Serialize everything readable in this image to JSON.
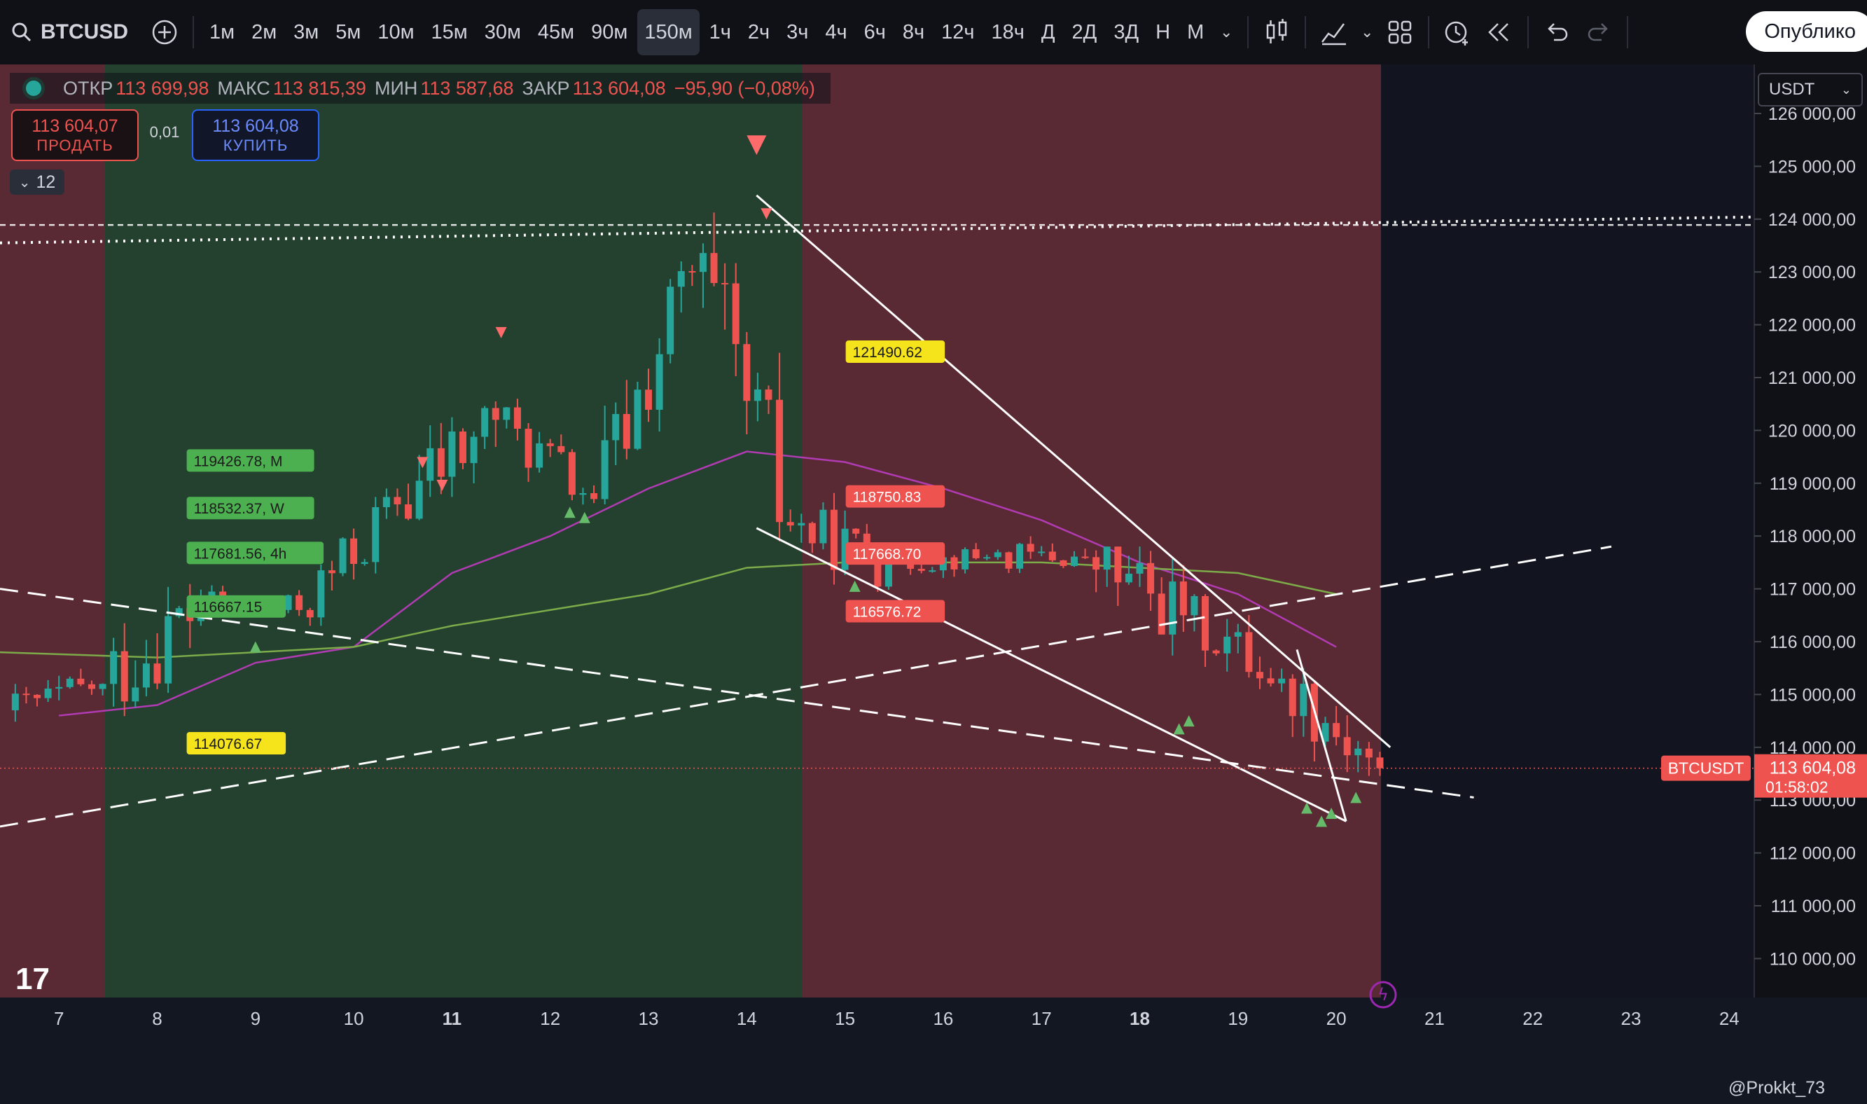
{
  "toolbar": {
    "symbol": "BTCUSD",
    "intervals": [
      "1м",
      "2м",
      "3м",
      "5м",
      "10м",
      "15м",
      "30м",
      "45м",
      "90м",
      "150м",
      "1ч",
      "2ч",
      "3ч",
      "4ч",
      "6ч",
      "8ч",
      "12ч",
      "18ч",
      "Д",
      "2Д",
      "3Д",
      "Н",
      "М"
    ],
    "active_interval": "150м",
    "publish_label": "Опублико"
  },
  "legend": {
    "open_label": "ОТКР",
    "open": "113 699,98",
    "high_label": "МАКС",
    "high": "113 815,39",
    "low_label": "МИН",
    "low": "113 587,68",
    "close_label": "ЗАКР",
    "close": "113 604,08",
    "change": "−95,90 (−0,08%)"
  },
  "trade": {
    "sell_price": "113 604,07",
    "sell_label": "ПРОДАТЬ",
    "spread": "0,01",
    "buy_price": "113 604,08",
    "buy_label": "КУПИТЬ",
    "indicators_count": "12"
  },
  "currency": "USDT",
  "brand": "@Prokkt_73",
  "colors": {
    "up": "#26a69a",
    "down": "#ef5350",
    "bull_zone": "#24402f",
    "bear_zone": "#5a2a34",
    "ma_fast": "#b13bb3",
    "ma_slow": "#7cab4a"
  },
  "chart_data": {
    "type": "candlestick",
    "y_axis_ticks": [
      "110 000,00",
      "111 000,00",
      "112 000,00",
      "113 000,00",
      "114 000,00",
      "115 000,00",
      "116 000,00",
      "117 000,00",
      "118 000,00",
      "119 000,00",
      "120 000,00",
      "121 000,00",
      "122 000,00",
      "123 000,00",
      "124 000,00",
      "125 000,00",
      "126 000,00"
    ],
    "ylim": [
      109500,
      126200
    ],
    "x_axis_ticks": [
      "7",
      "8",
      "9",
      "10",
      "11",
      "12",
      "13",
      "14",
      "15",
      "16",
      "17",
      "18",
      "19",
      "20",
      "21",
      "22",
      "23",
      "24"
    ],
    "bold_ticks": [
      "11",
      "18"
    ],
    "candles_daily": [
      {
        "day": 7,
        "open": 114700,
        "high": 115600,
        "low": 114100,
        "close": 115200
      },
      {
        "day": 8,
        "open": 115200,
        "high": 117900,
        "low": 114000,
        "close": 116700
      },
      {
        "day": 9,
        "open": 116700,
        "high": 117400,
        "low": 116100,
        "close": 116600
      },
      {
        "day": 10,
        "open": 116600,
        "high": 118900,
        "low": 116300,
        "close": 118600
      },
      {
        "day": 11,
        "open": 118600,
        "high": 122300,
        "low": 118300,
        "close": 120200
      },
      {
        "day": 12,
        "open": 120200,
        "high": 120600,
        "low": 118200,
        "close": 118700
      },
      {
        "day": 13,
        "open": 118700,
        "high": 123200,
        "low": 118600,
        "close": 123000
      },
      {
        "day": 14,
        "open": 123000,
        "high": 124400,
        "low": 117900,
        "close": 118200
      },
      {
        "day": 15,
        "open": 118200,
        "high": 119200,
        "low": 116800,
        "close": 117500
      },
      {
        "day": 16,
        "open": 117500,
        "high": 118000,
        "low": 117000,
        "close": 117600
      },
      {
        "day": 17,
        "open": 117600,
        "high": 118500,
        "low": 117300,
        "close": 117600
      },
      {
        "day": 18,
        "open": 117600,
        "high": 117800,
        "low": 114700,
        "close": 116500
      },
      {
        "day": 19,
        "open": 116500,
        "high": 116900,
        "low": 114600,
        "close": 115300
      },
      {
        "day": 20,
        "open": 115300,
        "high": 115500,
        "low": 112600,
        "close": 113604
      }
    ],
    "moving_averages": [
      {
        "name": "",
        "color": "#b13bb3",
        "points": [
          [
            7,
            114600
          ],
          [
            8,
            114800
          ],
          [
            9,
            115600
          ],
          [
            10,
            115900
          ],
          [
            11,
            117300
          ],
          [
            12,
            118000
          ],
          [
            13,
            118900
          ],
          [
            14,
            119600
          ],
          [
            15,
            119400
          ],
          [
            16,
            118900
          ],
          [
            17,
            118300
          ],
          [
            18,
            117500
          ],
          [
            19,
            116900
          ],
          [
            20,
            115900
          ]
        ]
      },
      {
        "name": "",
        "color": "#7cab4a",
        "points": [
          [
            6.4,
            115800
          ],
          [
            8,
            115700
          ],
          [
            9,
            115800
          ],
          [
            10,
            115900
          ],
          [
            11,
            116300
          ],
          [
            12,
            116600
          ],
          [
            13,
            116900
          ],
          [
            14,
            117400
          ],
          [
            15,
            117500
          ],
          [
            16,
            117500
          ],
          [
            17,
            117500
          ],
          [
            18,
            117400
          ],
          [
            19,
            117300
          ],
          [
            20,
            116900
          ]
        ]
      }
    ],
    "labels": [
      {
        "text": "121490.62",
        "day": 15.15,
        "price": 121490,
        "color": "#f5e31b"
      },
      {
        "text": "119426.78, M",
        "day": 8.3,
        "price": 119430,
        "color": "#4caf50"
      },
      {
        "text": "118532.37, W",
        "day": 8.3,
        "price": 118530,
        "color": "#4caf50"
      },
      {
        "text": "117681.56, 4h",
        "day": 8.3,
        "price": 117680,
        "color": "#4caf50"
      },
      {
        "text": "116667.15",
        "day": 8.3,
        "price": 116667,
        "color": "#4caf50"
      },
      {
        "text": "114076.67",
        "day": 8.3,
        "price": 114077,
        "color": "#f5e31b"
      },
      {
        "text": "118750.83",
        "day": 15.15,
        "price": 118750,
        "color": "#ef5350"
      },
      {
        "text": "117668.70",
        "day": 15.15,
        "price": 117669,
        "color": "#ef5350"
      },
      {
        "text": "116576.72",
        "day": 15.15,
        "price": 116577,
        "color": "#ef5350"
      }
    ],
    "current_price": {
      "symbol": "BTCUSDT",
      "price": "113 604,08",
      "countdown": "01:58:02",
      "value": 113604
    }
  }
}
